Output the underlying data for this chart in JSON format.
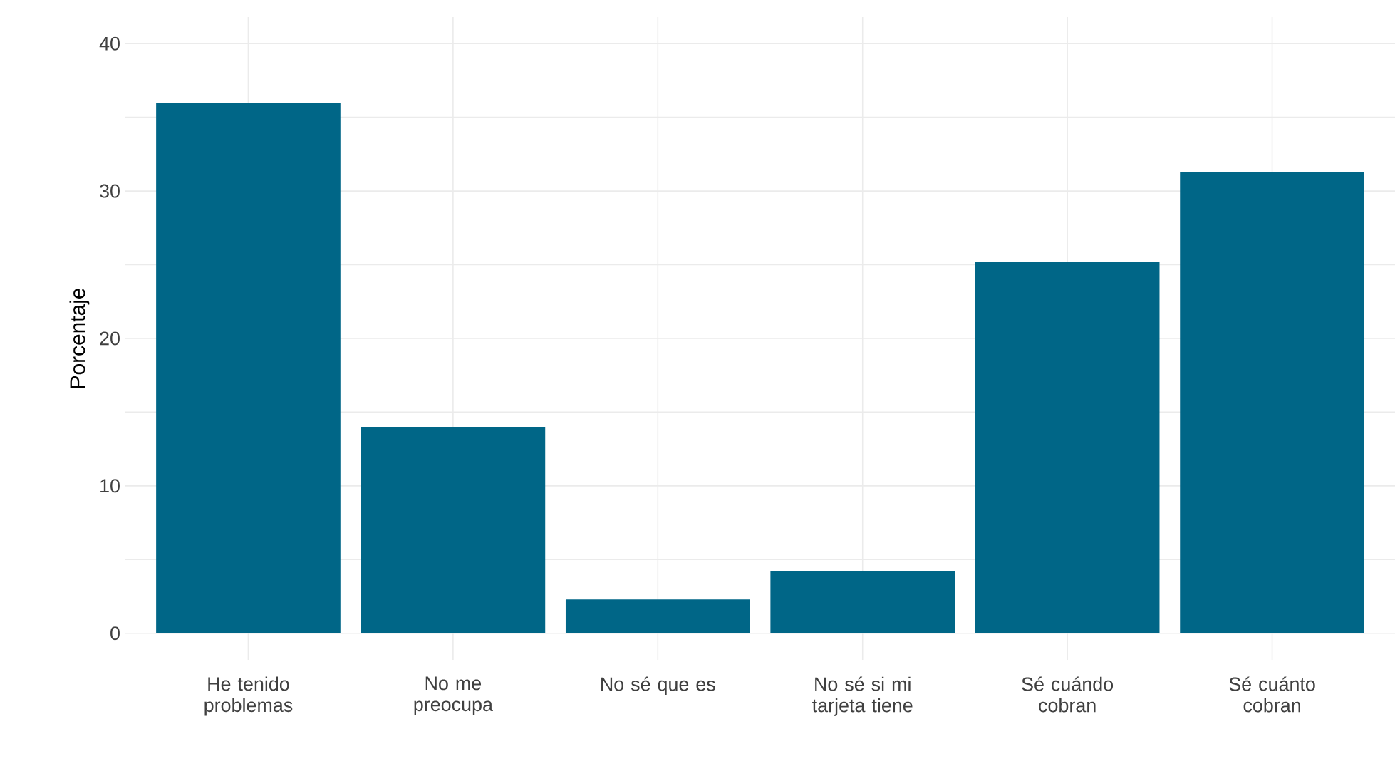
{
  "chart_data": {
    "type": "bar",
    "ylabel": "Porcentaje",
    "categories": [
      "He tenido problemas",
      "No me preocupa",
      "No sé que es",
      "No sé si mi tarjeta tiene",
      "Sé cuándo cobran",
      "Sé cuánto cobran"
    ],
    "values": [
      36.0,
      14.0,
      2.3,
      4.2,
      25.2,
      31.3
    ],
    "color": "#006687",
    "ylim": [
      -1.8,
      41.8
    ],
    "yticks": [
      0,
      {
        "value": 5,
        "label": null
      },
      10,
      {
        "value": 15,
        "label": null
      },
      20,
      {
        "value": 25,
        "label": null
      },
      30,
      {
        "value": 35,
        "label": null
      },
      40
    ],
    "grid": true
  }
}
